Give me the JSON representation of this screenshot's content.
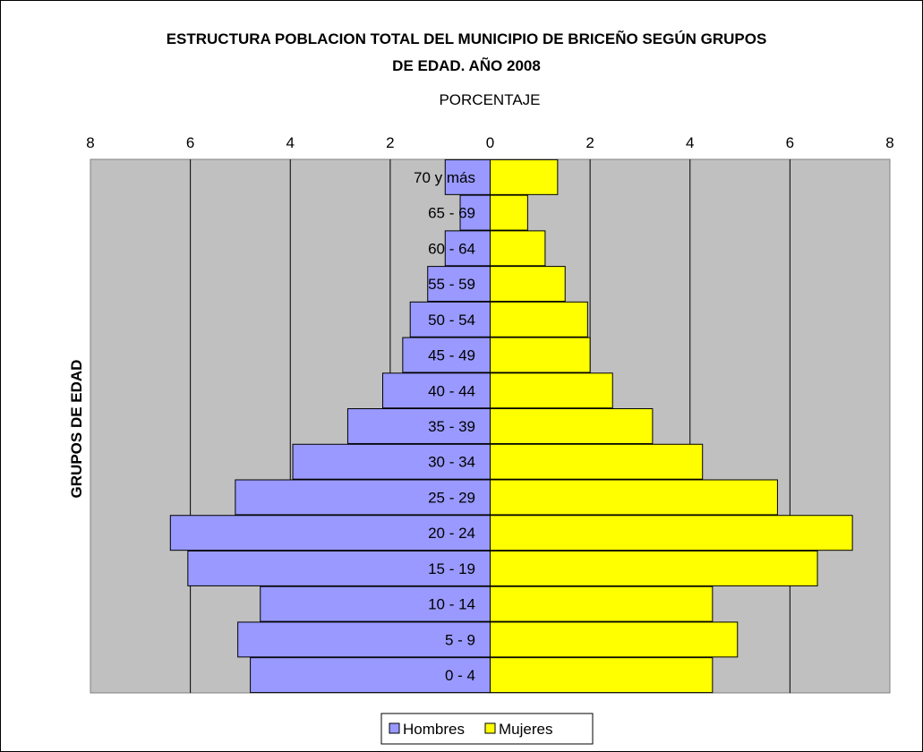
{
  "chart_data": {
    "type": "bar",
    "orientation": "horizontal",
    "title_line1": "ESTRUCTURA POBLACION TOTAL DEL MUNICIPIO DE BRICEÑO SEGÚN GRUPOS",
    "title_line2": "DE EDAD. AÑO 2008",
    "subtitle": "PORCENTAJE",
    "ylabel": "GRUPOS DE EDAD",
    "xlim": [
      -8,
      8
    ],
    "x_ticks": [
      -8,
      -6,
      -4,
      -2,
      0,
      2,
      4,
      6,
      8
    ],
    "x_tick_labels": [
      "8",
      "6",
      "4",
      "2",
      "0",
      "2",
      "4",
      "6",
      "8"
    ],
    "grid": true,
    "legend_position": "bottom",
    "categories": [
      "70 y más",
      "65 - 69",
      "60 - 64",
      "55 - 59",
      "50 - 54",
      "45 - 49",
      "40 - 44",
      "35 - 39",
      "30 - 34",
      "25 - 29",
      "20 - 24",
      "15 - 19",
      "10 - 14",
      "5 - 9",
      "0 - 4"
    ],
    "series": [
      {
        "name": "Hombres",
        "color": "#9999FF",
        "values": [
          0.9,
          0.6,
          0.9,
          1.25,
          1.6,
          1.75,
          2.15,
          2.85,
          3.95,
          5.1,
          6.4,
          6.05,
          4.6,
          5.05,
          4.8
        ]
      },
      {
        "name": "Mujeres",
        "color": "#FFFF00",
        "values": [
          1.35,
          0.75,
          1.1,
          1.5,
          1.95,
          2.0,
          2.45,
          3.25,
          4.25,
          5.75,
          7.25,
          6.55,
          4.45,
          4.95,
          4.45
        ]
      }
    ],
    "plot_background": "#C0C0C0"
  }
}
